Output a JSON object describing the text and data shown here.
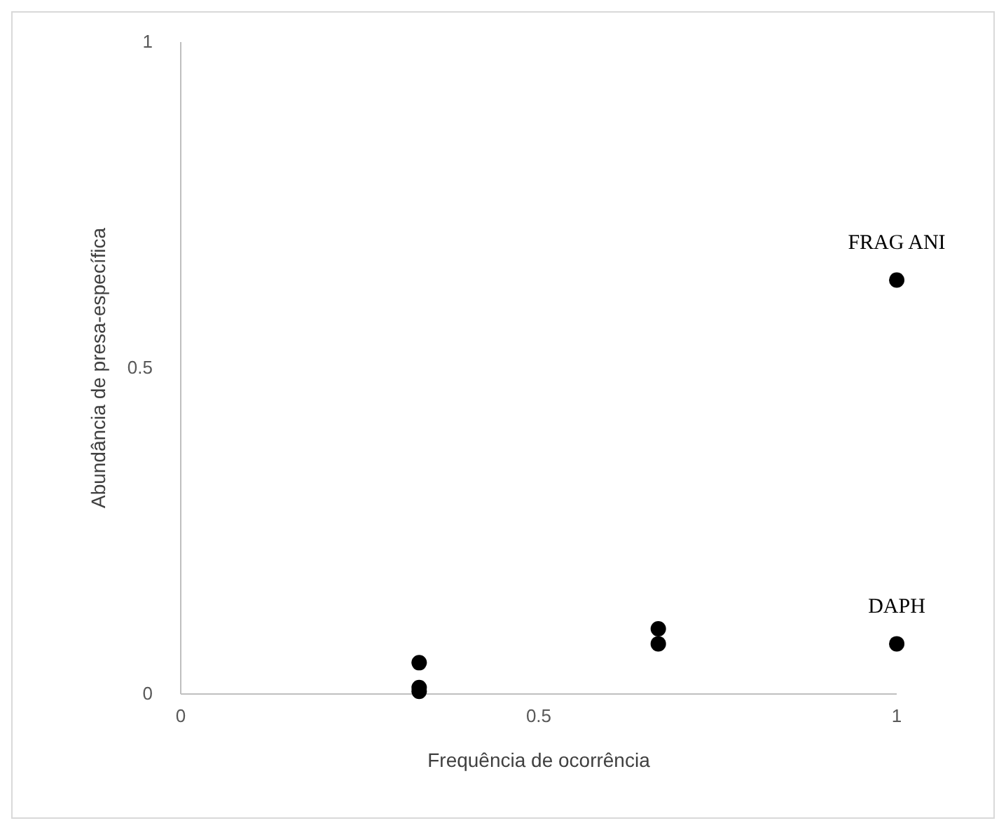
{
  "chart_data": {
    "type": "scatter",
    "xlabel": "Frequência de ocorrência",
    "ylabel": "Abundância de presa-específica",
    "x": [
      0.333,
      0.333,
      0.333,
      0.667,
      0.667,
      1,
      1
    ],
    "values": [
      0.048,
      0.01,
      0.004,
      0.1,
      0.077,
      0.077,
      0.635
    ],
    "color": "#000000",
    "marker": "circle",
    "xlim": [
      0,
      1
    ],
    "ylim": [
      0,
      1
    ],
    "xticks": [
      0,
      0.5,
      1
    ],
    "yticks": [
      0,
      0.5,
      1
    ],
    "grid": false,
    "annotations": [
      {
        "text": "DAPH",
        "x": 1,
        "y": 0.077
      },
      {
        "text": "FRAG ANI",
        "x": 1,
        "y": 0.635
      }
    ]
  }
}
